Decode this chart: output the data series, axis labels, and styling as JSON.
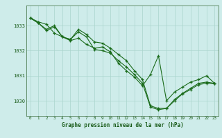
{
  "title": "Graphe pression niveau de la mer (hPa)",
  "bg_color": "#ceecea",
  "line_color": "#1a6b1a",
  "marker": "+",
  "grid_color": "#aad4cc",
  "tick_color": "#1a5c1a",
  "ylabel_labels": [
    1030,
    1031,
    1032,
    1033
  ],
  "xlim": [
    -0.5,
    23.5
  ],
  "ylim": [
    1029.4,
    1033.8
  ],
  "series1": {
    "x": [
      0,
      1,
      2,
      3,
      4,
      5,
      6,
      7,
      8,
      9,
      10,
      11,
      12,
      13,
      14,
      15,
      16,
      17,
      18,
      19,
      20,
      21,
      22,
      23
    ],
    "y": [
      1033.3,
      1033.15,
      1033.05,
      1032.7,
      1032.55,
      1032.45,
      1032.85,
      1032.65,
      1032.35,
      1032.3,
      1032.1,
      1031.85,
      1031.6,
      1031.2,
      1030.85,
      1029.8,
      1029.7,
      1029.7,
      1030.05,
      1030.3,
      1030.5,
      1030.7,
      1030.75,
      1030.7
    ]
  },
  "series2": {
    "x": [
      0,
      1,
      2,
      3,
      4,
      5,
      6,
      7,
      8,
      9,
      10,
      11,
      12,
      13,
      14,
      15,
      16,
      17,
      18,
      19,
      20,
      21,
      22,
      23
    ],
    "y": [
      1033.3,
      1033.1,
      1032.8,
      1032.95,
      1032.55,
      1032.45,
      1032.75,
      1032.55,
      1032.05,
      1032.0,
      1031.9,
      1031.6,
      1031.35,
      1031.05,
      1030.7,
      1029.75,
      1029.65,
      1029.7,
      1030.0,
      1030.28,
      1030.45,
      1030.65,
      1030.7,
      1030.68
    ]
  },
  "series3": {
    "x": [
      0,
      1,
      2,
      3,
      4,
      5,
      6,
      7,
      8,
      9,
      10,
      11,
      12,
      13,
      14,
      15,
      16,
      17,
      18,
      19,
      20,
      21,
      22,
      23
    ],
    "y": [
      1033.3,
      1033.1,
      1032.85,
      1033.0,
      1032.55,
      1032.4,
      1032.5,
      1032.25,
      1032.1,
      1032.15,
      1031.95,
      1031.5,
      1031.2,
      1030.95,
      1030.6,
      1031.05,
      1031.8,
      1030.0,
      1030.35,
      1030.55,
      1030.75,
      1030.85,
      1031.0,
      1030.7
    ]
  }
}
